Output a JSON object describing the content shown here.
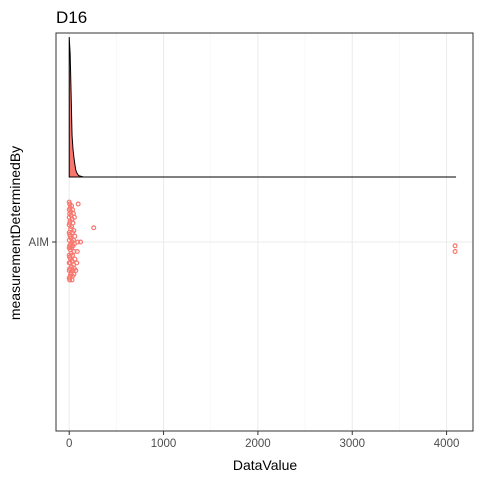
{
  "chart_data": {
    "type": "scatter",
    "title": "D16",
    "xlabel": "DataValue",
    "ylabel": "measurementDeterminedBy",
    "categories": [
      "AIM"
    ],
    "xlim": [
      -140,
      4280
    ],
    "x_ticks": [
      0,
      1000,
      2000,
      3000,
      4000
    ],
    "x_tick_labels": [
      "0",
      "1000",
      "2000",
      "3000",
      "4000"
    ],
    "grid": true,
    "legend": "none",
    "series": [
      {
        "category": "AIM",
        "points": [
          {
            "x": 0,
            "y": -0.42
          },
          {
            "x": 0,
            "y": -0.34
          },
          {
            "x": 0,
            "y": -0.26
          },
          {
            "x": 0,
            "y": -0.18
          },
          {
            "x": 0,
            "y": -0.1
          },
          {
            "x": 0,
            "y": -0.02
          },
          {
            "x": 0,
            "y": 0.06
          },
          {
            "x": 0,
            "y": 0.14
          },
          {
            "x": 0,
            "y": 0.22
          },
          {
            "x": 0,
            "y": 0.3
          },
          {
            "x": 0,
            "y": 0.38
          },
          {
            "x": 5,
            "y": -0.4
          },
          {
            "x": 5,
            "y": -0.3
          },
          {
            "x": 5,
            "y": -0.2
          },
          {
            "x": 5,
            "y": -0.08
          },
          {
            "x": 5,
            "y": 0.04
          },
          {
            "x": 5,
            "y": 0.16
          },
          {
            "x": 5,
            "y": 0.28
          },
          {
            "x": 5,
            "y": 0.4
          },
          {
            "x": 10,
            "y": -0.36
          },
          {
            "x": 10,
            "y": -0.22
          },
          {
            "x": 10,
            "y": -0.06
          },
          {
            "x": 10,
            "y": 0.08
          },
          {
            "x": 10,
            "y": 0.22
          },
          {
            "x": 10,
            "y": 0.36
          },
          {
            "x": 15,
            "y": -0.32
          },
          {
            "x": 15,
            "y": -0.14
          },
          {
            "x": 15,
            "y": 0.02
          },
          {
            "x": 15,
            "y": 0.18
          },
          {
            "x": 15,
            "y": 0.34
          },
          {
            "x": 20,
            "y": -0.28
          },
          {
            "x": 20,
            "y": -0.04
          },
          {
            "x": 20,
            "y": 0.12
          },
          {
            "x": 20,
            "y": 0.32
          },
          {
            "x": 25,
            "y": -0.38
          },
          {
            "x": 25,
            "y": -0.16
          },
          {
            "x": 25,
            "y": 0.06
          },
          {
            "x": 25,
            "y": 0.26
          },
          {
            "x": 30,
            "y": -0.24
          },
          {
            "x": 30,
            "y": 0.0
          },
          {
            "x": 30,
            "y": 0.2
          },
          {
            "x": 30,
            "y": 0.4
          },
          {
            "x": 35,
            "y": -0.34
          },
          {
            "x": 35,
            "y": -0.1
          },
          {
            "x": 35,
            "y": 0.14
          },
          {
            "x": 35,
            "y": 0.36
          },
          {
            "x": 40,
            "y": -0.2
          },
          {
            "x": 40,
            "y": 0.04
          },
          {
            "x": 40,
            "y": 0.3
          },
          {
            "x": 45,
            "y": -0.3
          },
          {
            "x": 45,
            "y": -0.02
          },
          {
            "x": 45,
            "y": 0.24
          },
          {
            "x": 50,
            "y": -0.12
          },
          {
            "x": 50,
            "y": 0.1
          },
          {
            "x": 50,
            "y": 0.34
          },
          {
            "x": 55,
            "y": -0.26
          },
          {
            "x": 55,
            "y": 0.02
          },
          {
            "x": 55,
            "y": 0.28
          },
          {
            "x": 60,
            "y": -0.06
          },
          {
            "x": 60,
            "y": 0.18
          },
          {
            "x": 70,
            "y": 0.3
          },
          {
            "x": 80,
            "y": 0.22
          },
          {
            "x": 85,
            "y": 0.1
          },
          {
            "x": 90,
            "y": 0.0
          },
          {
            "x": 95,
            "y": -0.4
          },
          {
            "x": 120,
            "y": 0.0
          },
          {
            "x": 260,
            "y": -0.15
          },
          {
            "x": 4090,
            "y": 0.1
          },
          {
            "x": 4090,
            "y": 0.04
          }
        ]
      }
    ],
    "density": {
      "x": [
        0,
        10,
        20,
        30,
        40,
        50,
        60,
        70,
        80,
        90,
        100,
        150,
        4100
      ],
      "relative_height": [
        1.0,
        0.88,
        0.6,
        0.3,
        0.2,
        0.14,
        0.09,
        0.05,
        0.03,
        0.02,
        0.01,
        0.0,
        0.0
      ]
    },
    "colors": {
      "points": "#F8766D",
      "density_fill": "#F8766D",
      "density_line": "#000000",
      "grid": "#ebebeb",
      "axis": "#333333"
    }
  }
}
